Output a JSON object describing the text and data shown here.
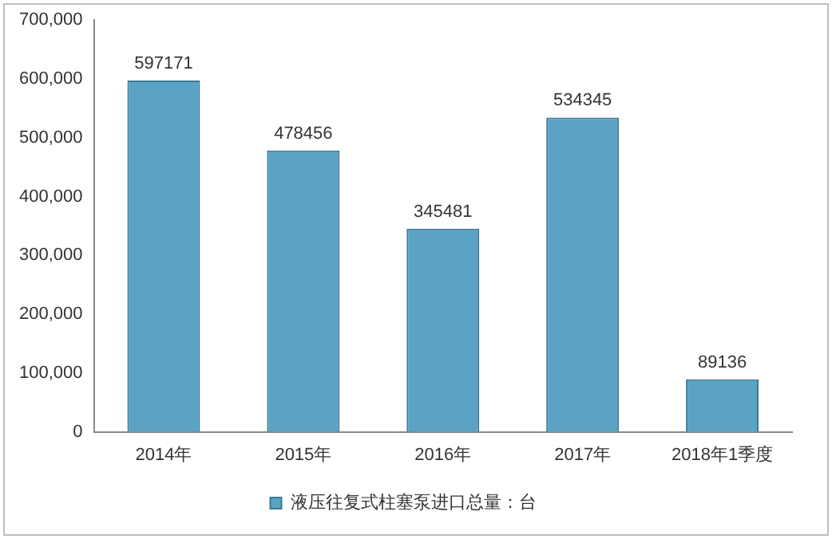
{
  "chart_data": {
    "type": "bar",
    "categories": [
      "2014年",
      "2015年",
      "2016年",
      "2017年",
      "2018年1季度"
    ],
    "series": [
      {
        "name": "液压往复式柱塞泵进口总量：台",
        "color": "#5ba3c4",
        "values": [
          597171,
          478456,
          345481,
          534345,
          89136
        ]
      }
    ],
    "ylim": [
      0,
      700000
    ],
    "yticks": [
      0,
      {
        "value": 100000,
        "label": "100,000"
      },
      {
        "value": 200000,
        "label": "200,000"
      },
      {
        "value": 300000,
        "label": "300,000"
      },
      {
        "value": 400000,
        "label": "400,000"
      },
      {
        "value": 500000,
        "label": "500,000"
      },
      {
        "value": 600000,
        "label": "600,000"
      },
      {
        "value": 700000,
        "label": "700,000"
      }
    ],
    "grid": false,
    "legend": "bottom",
    "data_labels": true
  }
}
